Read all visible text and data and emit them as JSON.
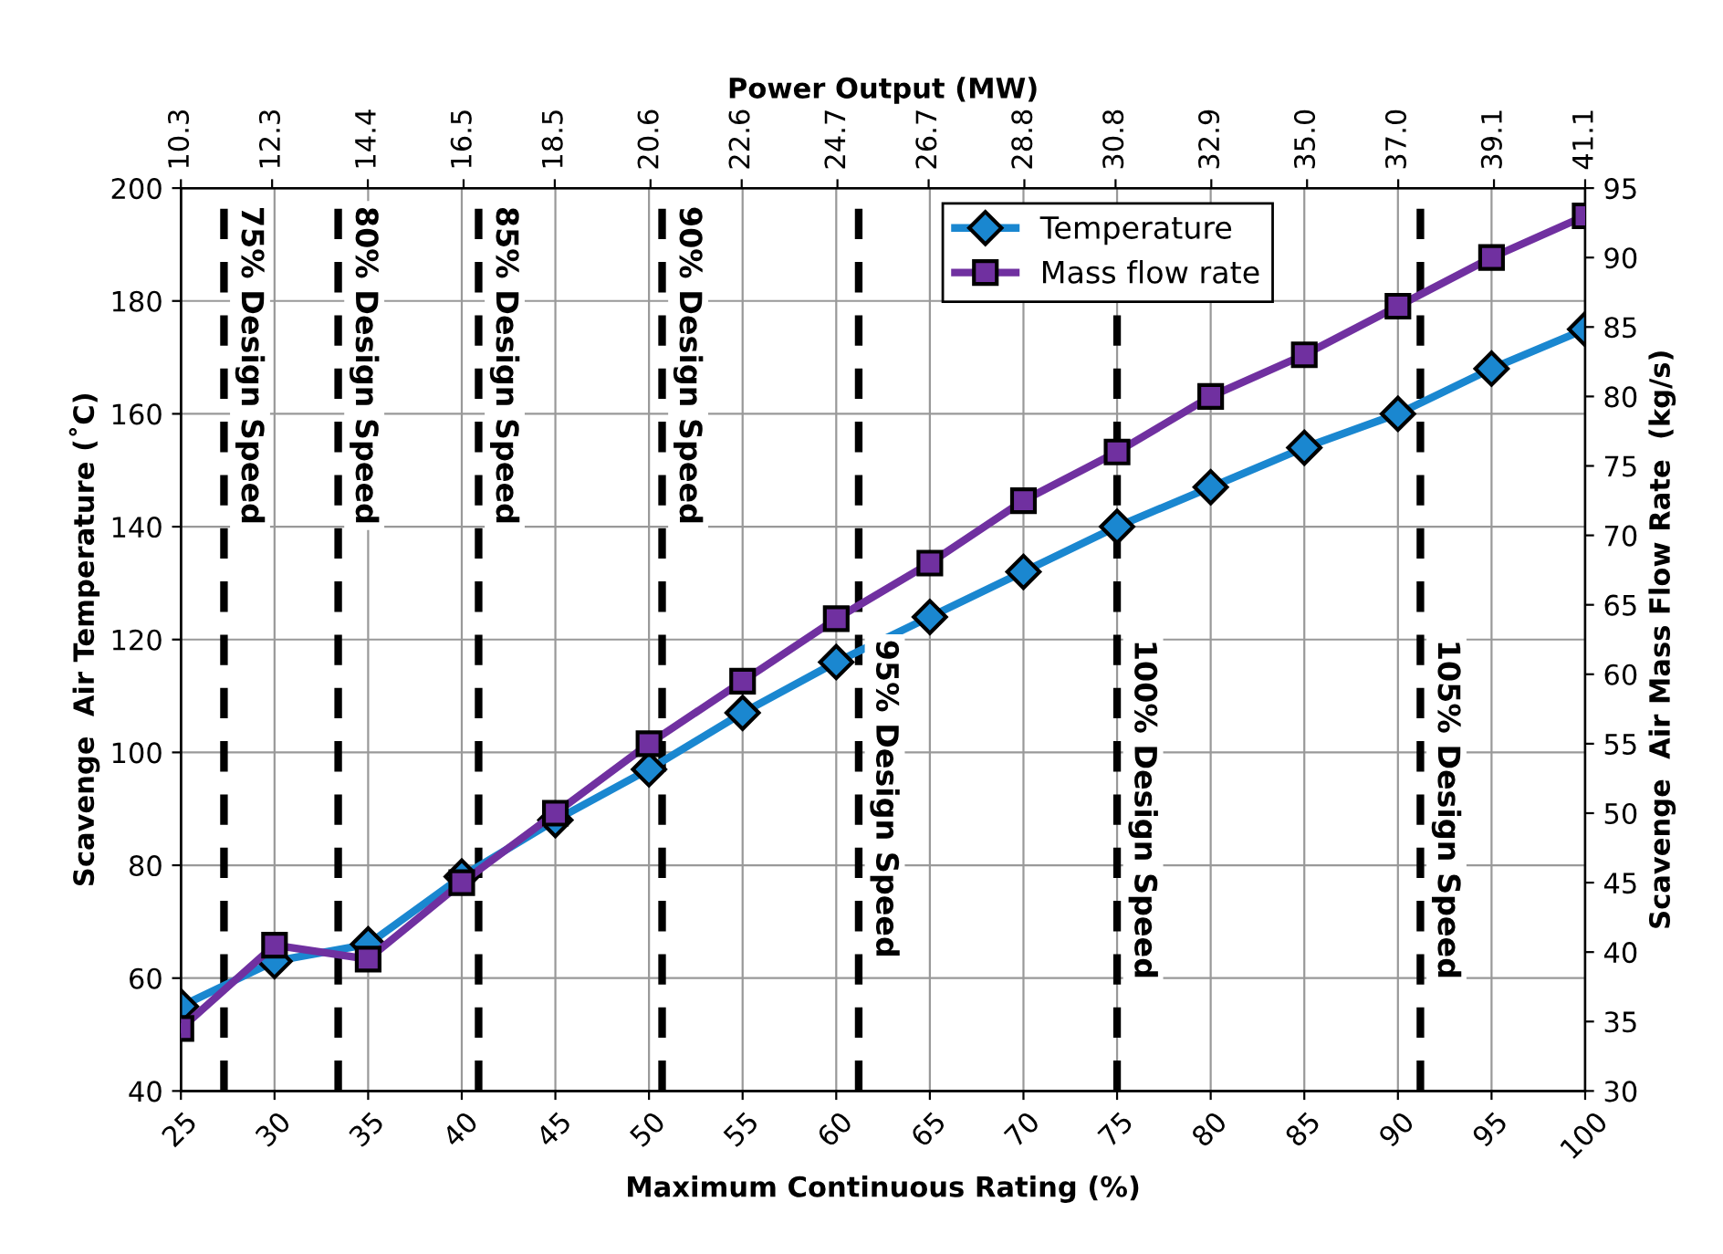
{
  "chart_data": {
    "type": "line",
    "xlabel": "Maximum Continuous Rating (%)",
    "ylabel": "Scavenge  Air Temperature (˚C)",
    "y2label": "Scavenge  Air Mass Flow Rate  (kg/s)",
    "x2label": "Power Output (MW)",
    "x": [
      25,
      30,
      35,
      40,
      45,
      50,
      55,
      60,
      65,
      70,
      75,
      80,
      85,
      90,
      95,
      100
    ],
    "series": [
      {
        "name": "Temperature",
        "color": "#1a87d0",
        "marker": "diamond",
        "values": [
          55,
          63,
          66,
          78,
          88,
          97,
          107,
          116,
          124,
          132,
          140,
          147,
          154,
          160,
          168,
          175
        ]
      },
      {
        "name": "Mass flow rate",
        "color": "#7030a0",
        "marker": "square",
        "axis": "y2",
        "values": [
          34.5,
          40.5,
          39.5,
          45,
          50,
          55,
          59.5,
          64,
          68,
          72.5,
          76,
          80,
          83,
          86.5,
          90,
          93
        ]
      }
    ],
    "xlim": [
      25,
      100
    ],
    "xticks": [
      25,
      30,
      35,
      40,
      45,
      50,
      55,
      60,
      65,
      70,
      75,
      80,
      85,
      90,
      95,
      100
    ],
    "x2lim": [
      10.3,
      41.1
    ],
    "x2ticks": [
      10.3,
      12.3,
      14.4,
      16.5,
      18.5,
      20.6,
      22.6,
      24.7,
      26.7,
      28.8,
      30.8,
      32.9,
      {
        "value": 35,
        "label": "35.0"
      },
      {
        "value": 37,
        "label": "37.0"
      },
      39.1,
      41.1
    ],
    "ylim": [
      40,
      200
    ],
    "yticks": [
      40,
      60,
      80,
      100,
      120,
      140,
      160,
      180,
      200
    ],
    "y2lim": [
      30,
      95
    ],
    "y2ticks": [
      30,
      35,
      40,
      45,
      50,
      55,
      60,
      65,
      70,
      75,
      80,
      85,
      90,
      95
    ],
    "ref_lines": [
      {
        "axis": "x",
        "value": 27.3,
        "label": "75% Design Speed",
        "color": "#000000",
        "line_style": "dashed"
      },
      {
        "axis": "x",
        "value": 33.4,
        "label": "80% Design Speed",
        "color": "#000000",
        "line_style": "dashed"
      },
      {
        "axis": "x",
        "value": 40.9,
        "label": "85% Design Speed",
        "color": "#000000",
        "line_style": "dashed"
      },
      {
        "axis": "x",
        "value": 50.7,
        "label": "90% Design Speed",
        "color": "#000000",
        "line_style": "dashed"
      },
      {
        "axis": "x",
        "value": 61.2,
        "label": "95% Design Speed",
        "color": "#000000",
        "line_style": "dashed"
      },
      {
        "axis": "x",
        "value": 75,
        "label": "100% Design Speed",
        "color": "#000000",
        "line_style": "dashed"
      },
      {
        "axis": "x",
        "value": 91.2,
        "label": "105% Design Speed",
        "color": "#000000",
        "line_style": "dashed"
      }
    ],
    "grid": true,
    "legend": "top"
  }
}
